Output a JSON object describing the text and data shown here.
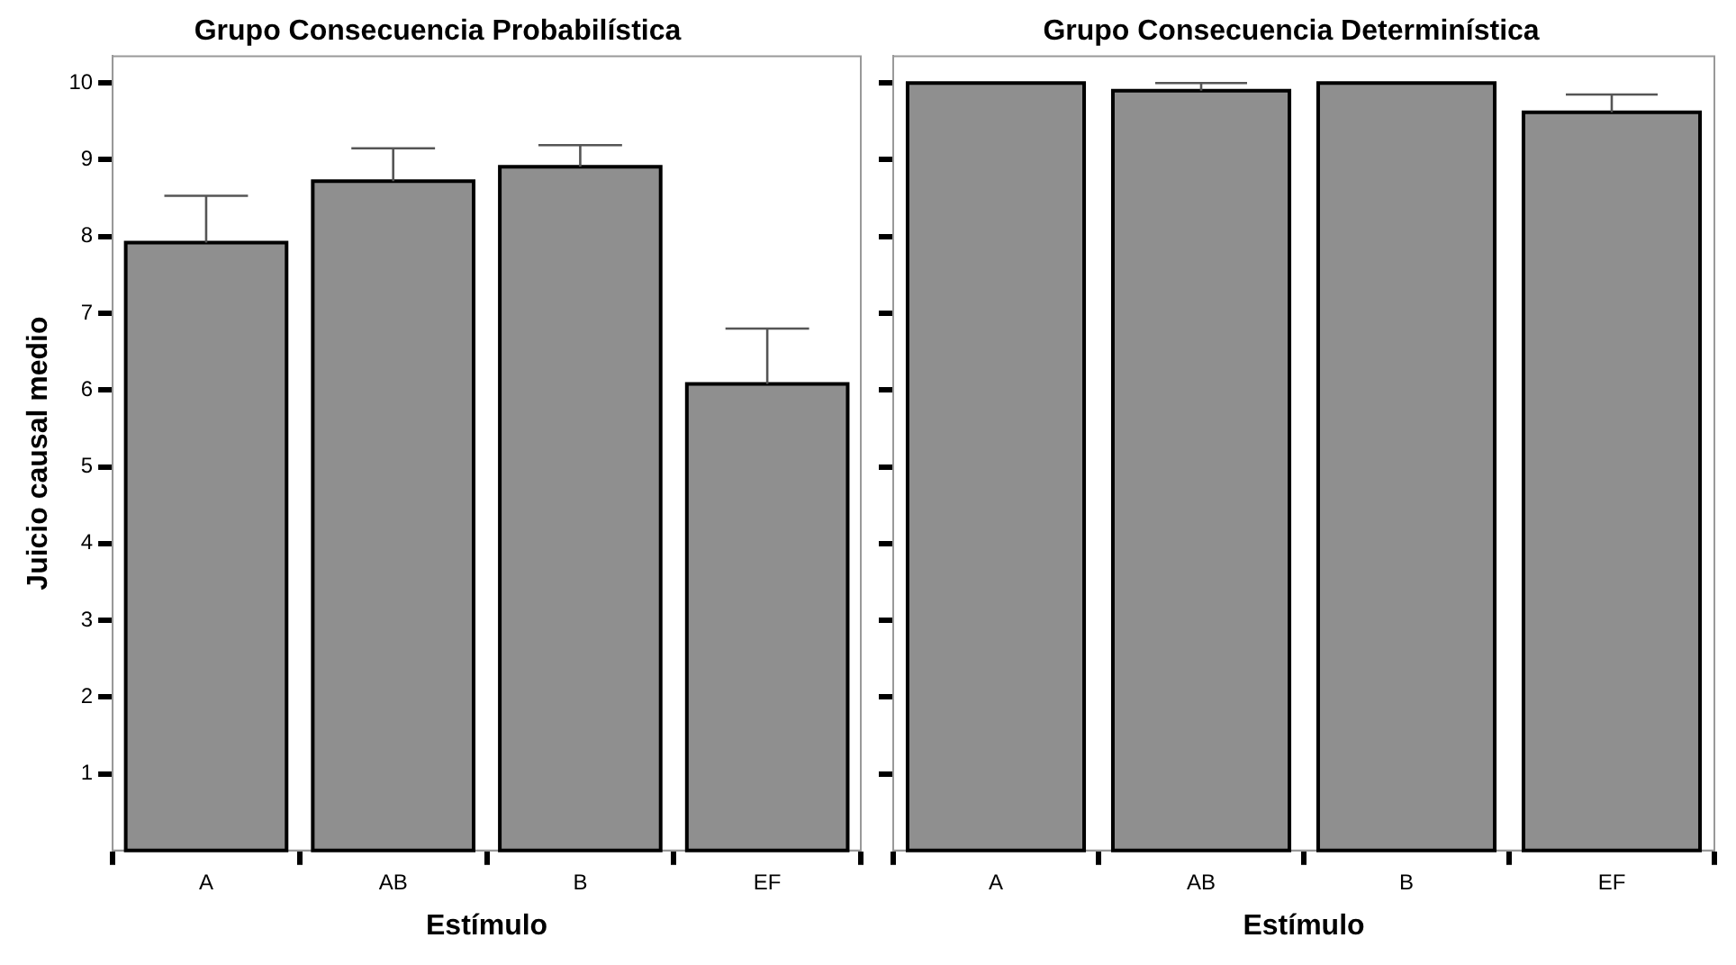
{
  "chart_data": [
    {
      "type": "bar",
      "title": "Grupo Consecuencia Probabilística",
      "xlabel": "Estímulo",
      "ylabel": "Juicio causal medio",
      "categories": [
        "A",
        "AB",
        "B",
        "EF"
      ],
      "values": [
        7.92,
        8.72,
        8.91,
        6.08
      ],
      "errors": [
        [
          7.92,
          8.53
        ],
        [
          8.72,
          9.15
        ],
        [
          8.91,
          9.19
        ],
        [
          6.08,
          6.8
        ]
      ],
      "color": "#8f8f8f",
      "ylim": [
        0,
        10.35
      ],
      "yticks": [
        1,
        2,
        3,
        4,
        5,
        6,
        7,
        8,
        9,
        10
      ],
      "grid": false,
      "legend": false
    },
    {
      "type": "bar",
      "title": "Grupo Consecuencia Determinística",
      "xlabel": "Estímulo",
      "categories": [
        "A",
        "AB",
        "B",
        "EF"
      ],
      "values": [
        10,
        9.9,
        10,
        9.62
      ],
      "errors": [
        null,
        [
          9.9,
          10
        ],
        null,
        [
          9.62,
          9.85
        ]
      ],
      "color": "#8f8f8f",
      "ylim": [
        0,
        10.35
      ],
      "yticks": [
        1,
        2,
        3,
        4,
        5,
        6,
        7,
        8,
        9,
        10
      ],
      "tick_labels": "x",
      "grid": false,
      "legend": false
    }
  ]
}
